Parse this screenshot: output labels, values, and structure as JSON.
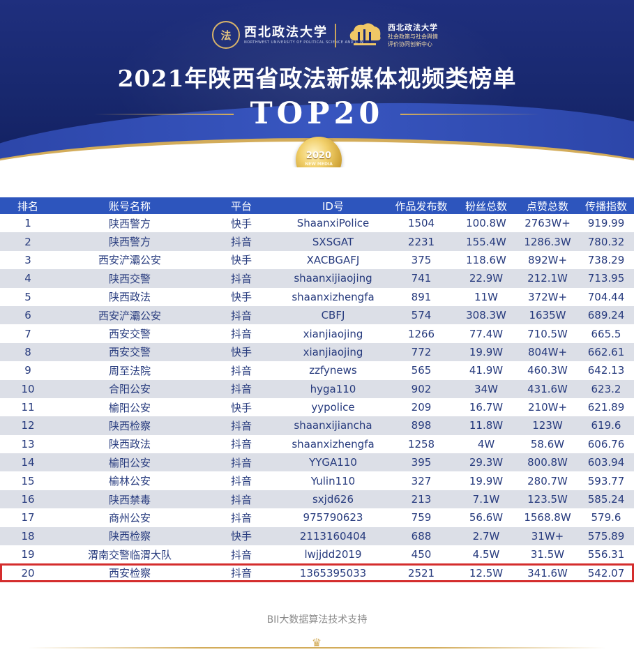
{
  "header": {
    "university_name": "西北政法大学",
    "university_english": "NORTHWEST UNIVERSITY OF POLITICAL SCIENCE AND LAW",
    "center_name": "西北政法大学",
    "center_line1": "社会政策与社会舆情",
    "center_line2": "评价协同创新中心",
    "title": "2021年陕西省政法新媒体视频类榜单",
    "subtitle": "TOP20",
    "medal_year": "2020",
    "medal_text": "NEW MEDIA"
  },
  "table": {
    "columns": [
      "排名",
      "账号名称",
      "平台",
      "ID号",
      "作品发布数",
      "粉丝总数",
      "点赞总数",
      "传播指数"
    ],
    "rows": [
      [
        "1",
        "陕西警方",
        "快手",
        "ShaanxiPolice",
        "1504",
        "100.8W",
        "2763W+",
        "919.99"
      ],
      [
        "2",
        "陕西警方",
        "抖音",
        "SXSGAT",
        "2231",
        "155.4W",
        "1286.3W",
        "780.32"
      ],
      [
        "3",
        "西安浐灞公安",
        "快手",
        "XACBGAFJ",
        "375",
        "118.6W",
        "892W+",
        "738.29"
      ],
      [
        "4",
        "陕西交警",
        "抖音",
        "shaanxijiaojing",
        "741",
        "22.9W",
        "212.1W",
        "713.95"
      ],
      [
        "5",
        "陕西政法",
        "快手",
        "shaanxizhengfa",
        "891",
        "11W",
        "372W+",
        "704.44"
      ],
      [
        "6",
        "西安浐灞公安",
        "抖音",
        "CBFJ",
        "574",
        "308.3W",
        "1635W",
        "689.24"
      ],
      [
        "7",
        "西安交警",
        "抖音",
        "xianjiaojing",
        "1266",
        "77.4W",
        "710.5W",
        "665.5"
      ],
      [
        "8",
        "西安交警",
        "快手",
        "xianjiaojing",
        "772",
        "19.9W",
        "804W+",
        "662.61"
      ],
      [
        "9",
        "周至法院",
        "抖音",
        "zzfynews",
        "565",
        "41.9W",
        "460.3W",
        "642.13"
      ],
      [
        "10",
        "合阳公安",
        "抖音",
        "hyga110",
        "902",
        "34W",
        "431.6W",
        "623.2"
      ],
      [
        "11",
        "榆阳公安",
        "快手",
        "yypolice",
        "209",
        "16.7W",
        "210W+",
        "621.89"
      ],
      [
        "12",
        "陕西检察",
        "抖音",
        "shaanxijiancha",
        "898",
        "11.8W",
        "123W",
        "619.6"
      ],
      [
        "13",
        "陕西政法",
        "抖音",
        "shaanxizhengfa",
        "1258",
        "4W",
        "58.6W",
        "606.76"
      ],
      [
        "14",
        "榆阳公安",
        "抖音",
        "YYGA110",
        "395",
        "29.3W",
        "800.8W",
        "603.94"
      ],
      [
        "15",
        "榆林公安",
        "抖音",
        "Yulin110",
        "327",
        "19.9W",
        "280.7W",
        "593.77"
      ],
      [
        "16",
        "陕西禁毒",
        "抖音",
        "sxjd626",
        "213",
        "7.1W",
        "123.5W",
        "585.24"
      ],
      [
        "17",
        "商州公安",
        "抖音",
        "975790623",
        "759",
        "56.6W",
        "1568.8W",
        "579.6"
      ],
      [
        "18",
        "陕西检察",
        "快手",
        "2113160404",
        "688",
        "2.7W",
        "31W+",
        "575.89"
      ],
      [
        "19",
        "渭南交警临渭大队",
        "抖音",
        "lwjjdd2019",
        "450",
        "4.5W",
        "31.5W",
        "556.31"
      ],
      [
        "20",
        "西安检察",
        "抖音",
        "1365395033",
        "2521",
        "12.5W",
        "341.6W",
        "542.07"
      ]
    ],
    "highlight_row": 20,
    "highlight_color": "#d42d2d",
    "header_color": "#2d55bd"
  },
  "footer": {
    "text": "BII大数据算法技术支持"
  }
}
